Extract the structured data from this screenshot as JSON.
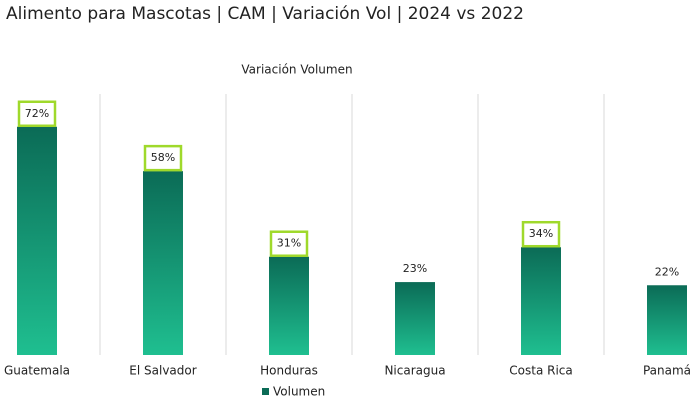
{
  "chart_data": {
    "type": "bar",
    "title": "Alimento para Mascotas | CAM | Variación Vol | 2024 vs 2022",
    "subtitle": "Variación Volumen",
    "categories": [
      "Guatemala",
      "El Salvador",
      "Honduras",
      "Nicaragua",
      "Costa Rica",
      "Panamá"
    ],
    "series": [
      {
        "name": "Volumen",
        "color": "#0b6b56",
        "gradient": [
          "#0b6b56",
          "#1fbf90"
        ],
        "values": [
          72,
          58,
          31,
          23,
          34,
          22
        ],
        "value_labels": [
          "72%",
          "58%",
          "31%",
          "23%",
          "34%",
          "22%"
        ]
      }
    ],
    "highlight": [
      true,
      true,
      true,
      false,
      true,
      false
    ],
    "highlight_color": "#9fd92b",
    "separator_color": "#d9d9d9"
  }
}
